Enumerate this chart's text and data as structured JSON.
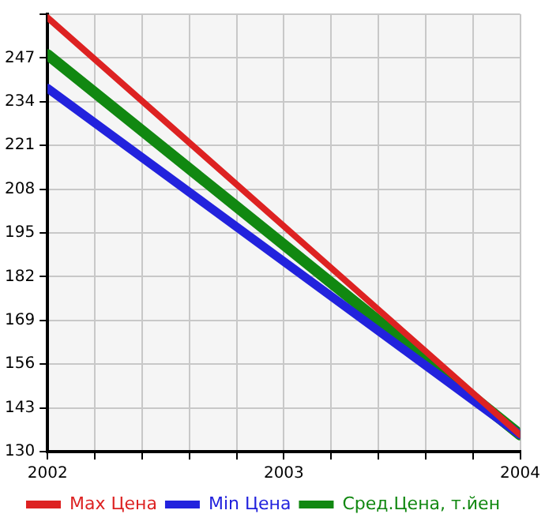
{
  "chart_data": {
    "type": "line",
    "x": [
      2002,
      2004
    ],
    "series": [
      {
        "name": "Max Цена",
        "color": "#dd2222",
        "values": [
          259,
          135
        ]
      },
      {
        "name": "Min Цена",
        "color": "#2222dd",
        "values": [
          238,
          135
        ]
      },
      {
        "name": "Сред.Цена, т.йен",
        "color": "#118811",
        "values": [
          248,
          135
        ]
      }
    ],
    "xlim": [
      2002,
      2004
    ],
    "xticks": [
      2002,
      {
        "value": 2002.2,
        "label": null
      },
      {
        "value": 2002.4,
        "label": null
      },
      {
        "value": 2002.6,
        "label": null
      },
      {
        "value": 2002.8,
        "label": null
      },
      2003,
      {
        "value": 2003.2,
        "label": null
      },
      {
        "value": 2003.4,
        "label": null
      },
      {
        "value": 2003.6,
        "label": null
      },
      {
        "value": 2003.8,
        "label": null
      },
      2004
    ],
    "ylim": [
      130,
      260
    ],
    "yticks": [
      130,
      143,
      156,
      169,
      182,
      195,
      208,
      221,
      234,
      247,
      {
        "value": 260,
        "label": null
      }
    ],
    "grid": true,
    "legend": "bottom",
    "marker": "none",
    "line_style": "solid"
  }
}
